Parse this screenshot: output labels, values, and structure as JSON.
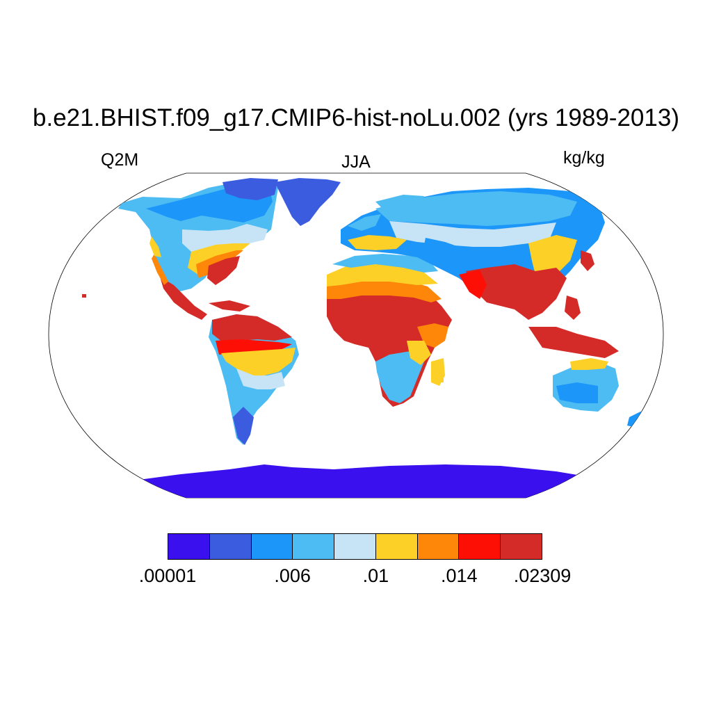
{
  "title": "b.e21.BHIST.f09_g17.CMIP6-hist-noLu.002 (yrs 1989-2013)",
  "left_label": "Q2M",
  "center_label": "JJA",
  "right_label": "kg/kg",
  "colorbar": {
    "colors": [
      "#3a10ee",
      "#3c5ce0",
      "#1c96f8",
      "#4cbcf2",
      "#c6e4f6",
      "#fdd027",
      "#fe8608",
      "#fe0f05",
      "#d42a28"
    ],
    "labels": [
      ".00001",
      ".006",
      ".01",
      ".014",
      ".02309"
    ],
    "label_box_index": [
      0,
      3,
      5,
      7,
      9
    ]
  }
}
